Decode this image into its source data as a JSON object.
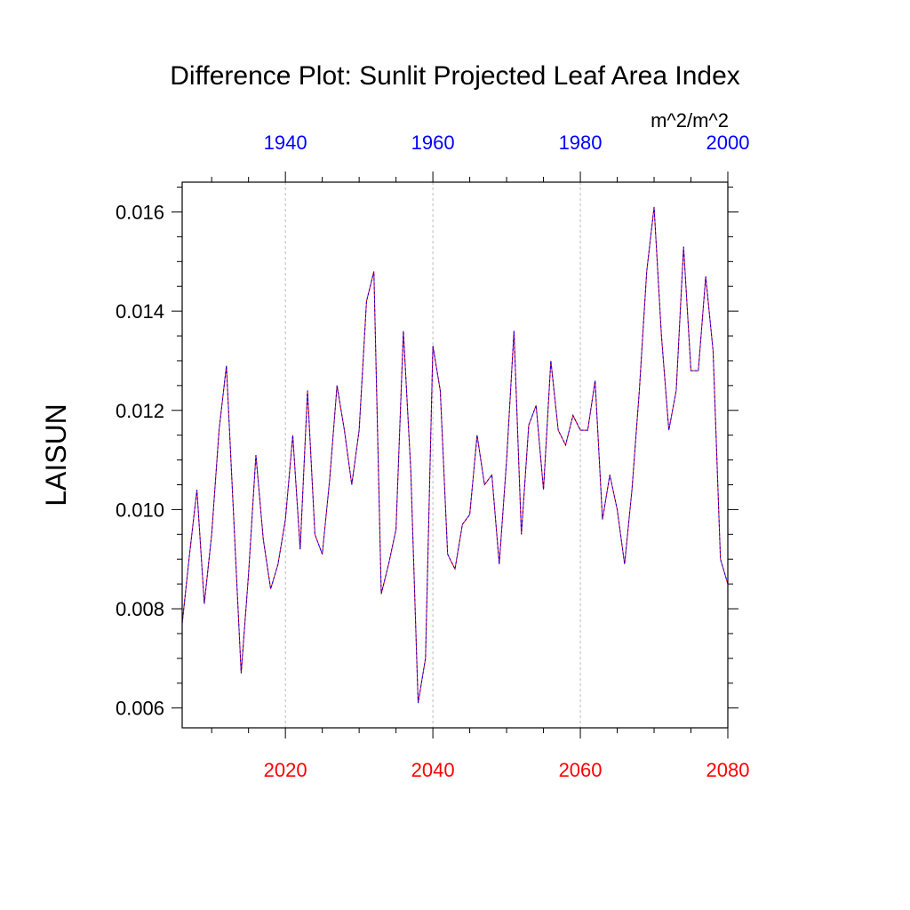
{
  "chart_data": {
    "type": "line",
    "title": "Difference Plot: Sunlit Projected Leaf Area Index",
    "units": "m^2/m^2",
    "ylabel": "LAISUN",
    "xlabel": "",
    "ylim": [
      0.0056,
      0.0166
    ],
    "y_ticks": [
      "0.006",
      "0.008",
      "0.010",
      "0.012",
      "0.014",
      "0.016"
    ],
    "y_tick_values": [
      0.006,
      0.008,
      0.01,
      0.012,
      0.014,
      0.016
    ],
    "x_bottom": {
      "range": [
        2006,
        2080
      ],
      "ticks": [
        "2020",
        "2040",
        "2060",
        "2080"
      ],
      "tick_values": [
        2020,
        2040,
        2060,
        2080
      ],
      "color": "#ff0000"
    },
    "x_top": {
      "range": [
        1926,
        2000
      ],
      "ticks": [
        "1940",
        "1960",
        "1980",
        "2000"
      ],
      "tick_values": [
        1940,
        1960,
        1980,
        2000
      ],
      "color": "#0000ff"
    },
    "grid": "vertical dashed at bottom-axis major ticks",
    "series": [
      {
        "name": "red (2006-2080)",
        "color": "#ff0000",
        "x": [
          2006,
          2007,
          2008,
          2009,
          2010,
          2011,
          2012,
          2013,
          2014,
          2015,
          2016,
          2017,
          2018,
          2019,
          2020,
          2021,
          2022,
          2023,
          2024,
          2025,
          2026,
          2027,
          2028,
          2029,
          2030,
          2031,
          2032,
          2033,
          2034,
          2035,
          2036,
          2037,
          2038,
          2039,
          2040,
          2041,
          2042,
          2043,
          2044,
          2045,
          2046,
          2047,
          2048,
          2049,
          2050,
          2051,
          2052,
          2053,
          2054,
          2055,
          2056,
          2057,
          2058,
          2059,
          2060,
          2061,
          2062,
          2063,
          2064,
          2065,
          2066,
          2067,
          2068,
          2069,
          2070,
          2071,
          2072,
          2073,
          2074,
          2075,
          2076,
          2077,
          2078,
          2079,
          2080
        ],
        "values": [
          0.0077,
          0.0091,
          0.0104,
          0.0081,
          0.0095,
          0.0116,
          0.0129,
          0.0098,
          0.0067,
          0.0087,
          0.0111,
          0.0094,
          0.0084,
          0.0089,
          0.0098,
          0.0115,
          0.0092,
          0.0124,
          0.0095,
          0.0091,
          0.0106,
          0.0125,
          0.0116,
          0.0105,
          0.0116,
          0.0142,
          0.0148,
          0.0083,
          0.0089,
          0.0096,
          0.0136,
          0.0108,
          0.0061,
          0.007,
          0.0133,
          0.0124,
          0.0091,
          0.0088,
          0.0097,
          0.0099,
          0.0115,
          0.0105,
          0.0107,
          0.0089,
          0.011,
          0.0136,
          0.0095,
          0.0117,
          0.0121,
          0.0104,
          0.013,
          0.0116,
          0.0113,
          0.0119,
          0.0116,
          0.0116,
          0.0126,
          0.0098,
          0.0107,
          0.01,
          0.0089,
          0.0104,
          0.0124,
          0.0148,
          0.0161,
          0.0135,
          0.0116,
          0.0124,
          0.0153,
          0.0128,
          0.0128,
          0.0147,
          0.0132,
          0.009,
          0.0085
        ]
      },
      {
        "name": "blue (1926-2000)",
        "color": "#0000ff",
        "x": [
          1926,
          1927,
          1928,
          1929,
          1930,
          1931,
          1932,
          1933,
          1934,
          1935,
          1936,
          1937,
          1938,
          1939,
          1940,
          1941,
          1942,
          1943,
          1944,
          1945,
          1946,
          1947,
          1948,
          1949,
          1950,
          1951,
          1952,
          1953,
          1954,
          1955,
          1956,
          1957,
          1958,
          1959,
          1960,
          1961,
          1962,
          1963,
          1964,
          1965,
          1966,
          1967,
          1968,
          1969,
          1970,
          1971,
          1972,
          1973,
          1974,
          1975,
          1976,
          1977,
          1978,
          1979,
          1980,
          1981,
          1982,
          1983,
          1984,
          1985,
          1986,
          1987,
          1988,
          1989,
          1990,
          1991,
          1992,
          1993,
          1994,
          1995,
          1996,
          1997,
          1998,
          1999,
          2000
        ],
        "values": [
          0.0077,
          0.0091,
          0.0104,
          0.0081,
          0.0095,
          0.0116,
          0.0129,
          0.0098,
          0.0067,
          0.0087,
          0.0111,
          0.0094,
          0.0084,
          0.0089,
          0.0098,
          0.0115,
          0.0092,
          0.0124,
          0.0095,
          0.0091,
          0.0106,
          0.0125,
          0.0116,
          0.0105,
          0.0116,
          0.0142,
          0.0148,
          0.0083,
          0.0089,
          0.0096,
          0.0136,
          0.0108,
          0.0061,
          0.007,
          0.0133,
          0.0124,
          0.0091,
          0.0088,
          0.0097,
          0.0099,
          0.0115,
          0.0105,
          0.0107,
          0.0089,
          0.011,
          0.0136,
          0.0095,
          0.0117,
          0.0121,
          0.0104,
          0.013,
          0.0116,
          0.0113,
          0.0119,
          0.0116,
          0.0116,
          0.0126,
          0.0098,
          0.0107,
          0.01,
          0.0089,
          0.0104,
          0.0124,
          0.0148,
          0.0161,
          0.0135,
          0.0116,
          0.0124,
          0.0153,
          0.0128,
          0.0128,
          0.0147,
          0.0132,
          0.009,
          0.0085
        ]
      }
    ]
  }
}
